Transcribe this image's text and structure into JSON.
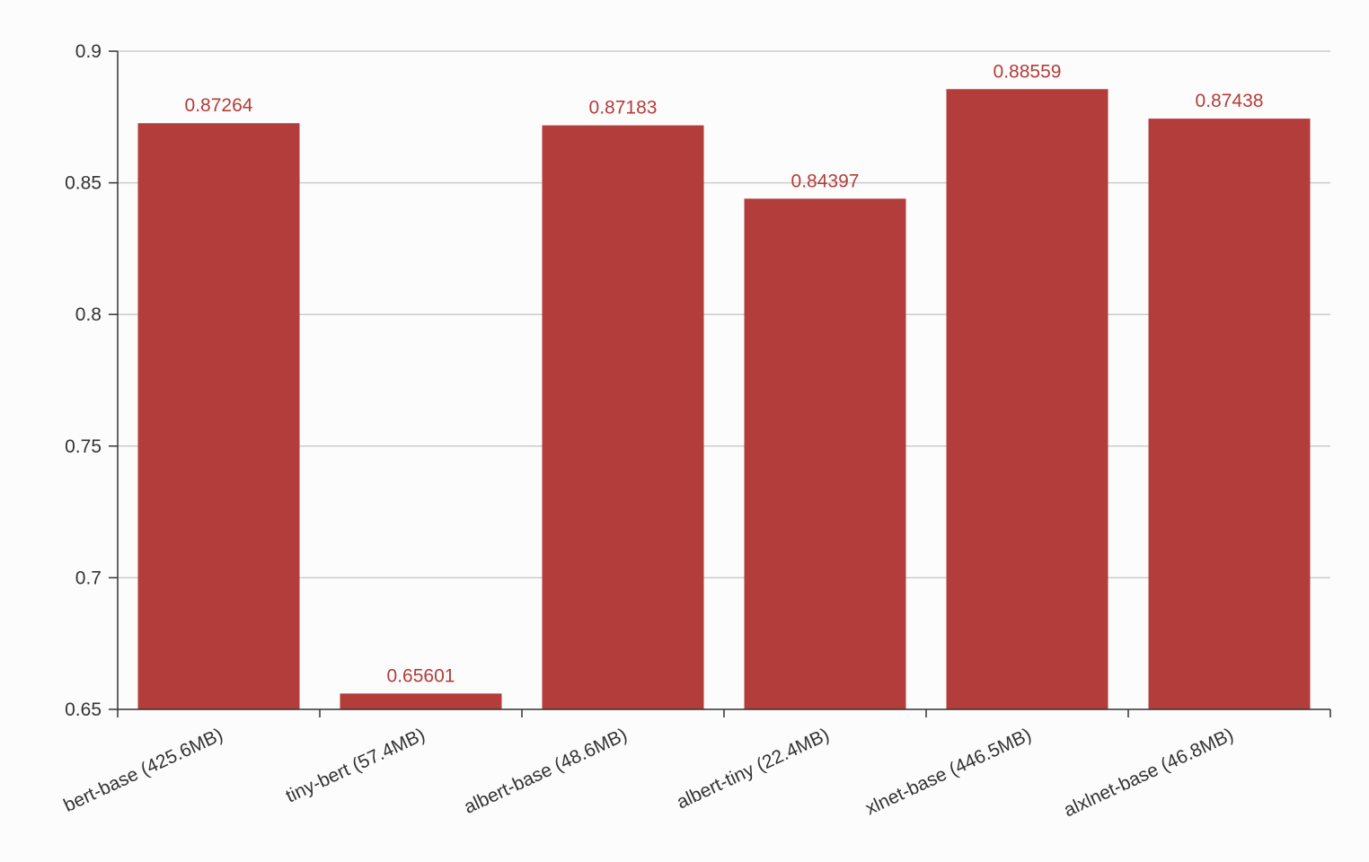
{
  "chart_data": {
    "type": "bar",
    "categories": [
      "bert-base (425.6MB)",
      "tiny-bert (57.4MB)",
      "albert-base (48.6MB)",
      "albert-tiny (22.4MB)",
      "xlnet-base (446.5MB)",
      "alxlnet-base (46.8MB)"
    ],
    "values": [
      0.87264,
      0.65601,
      0.87183,
      0.84397,
      0.88559,
      0.87438
    ],
    "value_labels": [
      "0.87264",
      "0.65601",
      "0.87183",
      "0.84397",
      "0.88559",
      "0.87438"
    ],
    "ylim": [
      0.65,
      0.9
    ],
    "yticks": [
      0.65,
      0.7,
      0.75,
      0.8,
      0.85,
      0.9
    ],
    "ytick_labels": [
      "0.65",
      "0.7",
      "0.75",
      "0.8",
      "0.85",
      "0.9"
    ],
    "grid": true,
    "bar_color": "#b33d3a",
    "label_color": "#b33d3a",
    "axis_color": "#333333",
    "grid_color": "#cccccc"
  }
}
